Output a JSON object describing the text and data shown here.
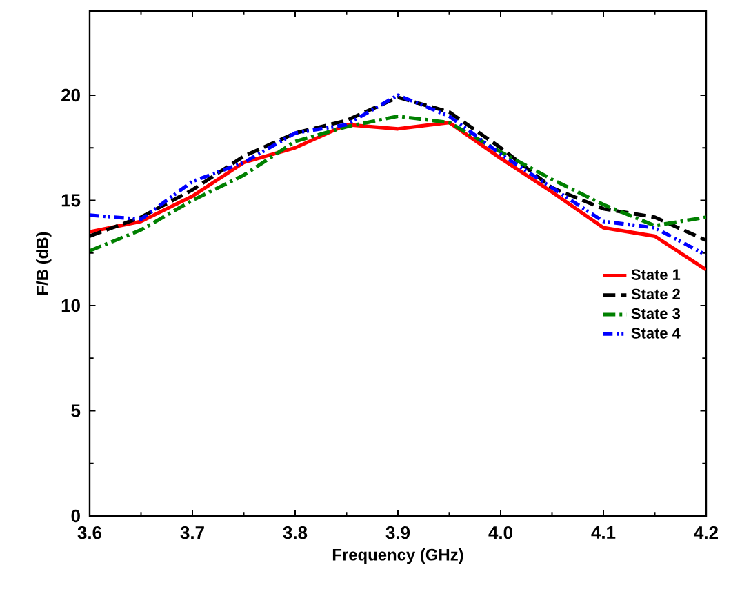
{
  "chart_data": {
    "type": "line",
    "xlabel": "Frequency (GHz)",
    "ylabel": "F/B (dB)",
    "x": [
      3.6,
      3.65,
      3.7,
      3.75,
      3.8,
      3.85,
      3.9,
      3.95,
      4.0,
      4.05,
      4.1,
      4.15,
      4.2
    ],
    "xlim": [
      3.6,
      4.2
    ],
    "ylim": [
      0,
      24
    ],
    "xticks": [
      {
        "value": 3.6,
        "label": "3.6"
      },
      {
        "value": 3.7,
        "label": "3.7"
      },
      {
        "value": 3.8,
        "label": "3.8"
      },
      {
        "value": 3.9,
        "label": "3.9"
      },
      {
        "value": 4.0,
        "label": "4.0"
      },
      {
        "value": 4.1,
        "label": "4.1"
      },
      {
        "value": 4.2,
        "label": "4.2"
      }
    ],
    "yticks": [
      0,
      5,
      10,
      15,
      20
    ],
    "grid": false,
    "legend": "right",
    "marker": "none",
    "series": [
      {
        "name": "State 1",
        "color": "#ff0000",
        "line_style": "solid",
        "values": [
          13.5,
          14.0,
          15.2,
          16.8,
          17.5,
          18.6,
          18.4,
          18.7,
          17.0,
          15.4,
          13.7,
          13.3,
          11.7
        ]
      },
      {
        "name": "State 2",
        "color": "#000000",
        "line_style": "dashed",
        "values": [
          13.3,
          14.2,
          15.5,
          17.1,
          18.2,
          18.8,
          19.9,
          19.2,
          17.5,
          15.6,
          14.6,
          14.2,
          13.1
        ]
      },
      {
        "name": "State 3",
        "color": "#008000",
        "line_style": "dashdot",
        "values": [
          12.6,
          13.6,
          15.0,
          16.2,
          17.8,
          18.5,
          19.0,
          18.7,
          17.3,
          16.0,
          14.8,
          13.8,
          14.2
        ]
      },
      {
        "name": "State 4",
        "color": "#0000ff",
        "line_style": "dashdotdot",
        "values": [
          14.3,
          14.1,
          15.9,
          16.8,
          18.2,
          18.6,
          20.0,
          19.0,
          17.2,
          15.6,
          14.0,
          13.7,
          12.4
        ]
      }
    ]
  }
}
